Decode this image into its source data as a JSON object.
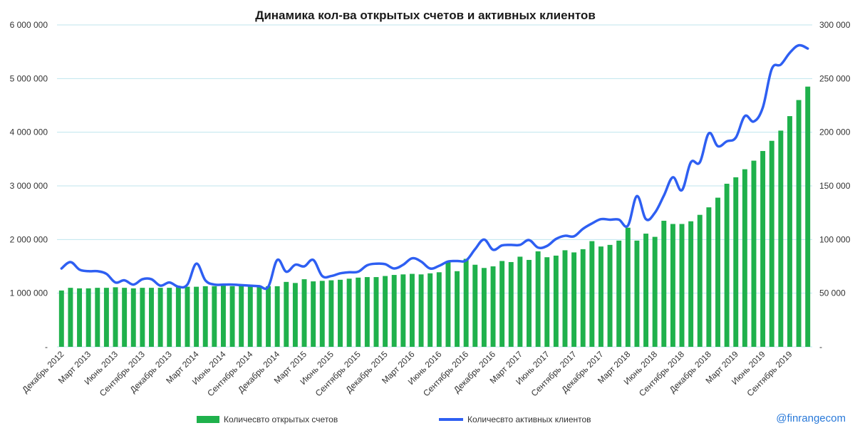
{
  "title": "Динамика кол-ва открытых счетов и активных клиентов",
  "watermark": "@finrangecom",
  "colors": {
    "bars": "#1fb14c",
    "line": "#2e5ff2",
    "grid": "#bfe6ee",
    "text": "#333333"
  },
  "chart_data": {
    "type": "bar",
    "title": "Динамика кол-ва открытых счетов и активных клиентов",
    "legend_position": "bottom",
    "grid": true,
    "y_left": {
      "min": 0,
      "max": 6000000,
      "ticks": [
        0,
        1000000,
        2000000,
        3000000,
        4000000,
        5000000,
        6000000
      ],
      "tick_labels": [
        "-",
        "1 000 000",
        "2 000 000",
        "3 000 000",
        "4 000 000",
        "5 000 000",
        "6 000 000"
      ]
    },
    "y_right": {
      "min": 0,
      "max": 300000,
      "ticks": [
        0,
        50000,
        100000,
        150000,
        200000,
        250000,
        300000
      ],
      "tick_labels": [
        "-",
        "50 000",
        "100 000",
        "150 000",
        "200 000",
        "250 000",
        "300 000"
      ]
    },
    "x_labels": [
      {
        "i": 0,
        "text": "Декабрь 2012"
      },
      {
        "i": 3,
        "text": "Март 2013"
      },
      {
        "i": 6,
        "text": "Июнь 2013"
      },
      {
        "i": 9,
        "text": "Сентябрь 2013"
      },
      {
        "i": 12,
        "text": "Декабрь 2013"
      },
      {
        "i": 15,
        "text": "Март 2014"
      },
      {
        "i": 18,
        "text": "Июнь 2014"
      },
      {
        "i": 21,
        "text": "Сентябрь 2014"
      },
      {
        "i": 24,
        "text": "Декабрь 2014"
      },
      {
        "i": 27,
        "text": "Март 2015"
      },
      {
        "i": 30,
        "text": "Июнь 2015"
      },
      {
        "i": 33,
        "text": "Сентябрь 2015"
      },
      {
        "i": 36,
        "text": "Декабрь 2015"
      },
      {
        "i": 39,
        "text": "Март 2016"
      },
      {
        "i": 42,
        "text": "Июнь 2016"
      },
      {
        "i": 45,
        "text": "Сентябрь 2016"
      },
      {
        "i": 48,
        "text": "Декабрь 2016"
      },
      {
        "i": 51,
        "text": "Март 2017"
      },
      {
        "i": 54,
        "text": "Июнь 2017"
      },
      {
        "i": 57,
        "text": "Сентябрь 2017"
      },
      {
        "i": 60,
        "text": "Декабрь 2017"
      },
      {
        "i": 63,
        "text": "Март 2018"
      },
      {
        "i": 66,
        "text": "Июнь 2018"
      },
      {
        "i": 69,
        "text": "Сентябрь 2018"
      },
      {
        "i": 72,
        "text": "Декабрь 2018"
      },
      {
        "i": 75,
        "text": "Март 2019"
      },
      {
        "i": 78,
        "text": "Июнь 2019"
      },
      {
        "i": 81,
        "text": "Сентябрь 2019"
      }
    ],
    "series": [
      {
        "name": "Количесвто открытых счетов",
        "type": "bar",
        "axis": "left",
        "values": [
          1050000,
          1100000,
          1090000,
          1090000,
          1100000,
          1100000,
          1110000,
          1100000,
          1090000,
          1100000,
          1100000,
          1100000,
          1100000,
          1110000,
          1120000,
          1120000,
          1130000,
          1130000,
          1140000,
          1130000,
          1140000,
          1150000,
          1140000,
          1130000,
          1130000,
          1210000,
          1190000,
          1260000,
          1220000,
          1230000,
          1240000,
          1250000,
          1270000,
          1290000,
          1300000,
          1300000,
          1320000,
          1340000,
          1350000,
          1360000,
          1350000,
          1370000,
          1390000,
          1600000,
          1410000,
          1640000,
          1530000,
          1470000,
          1500000,
          1600000,
          1580000,
          1680000,
          1620000,
          1780000,
          1670000,
          1700000,
          1800000,
          1760000,
          1820000,
          1970000,
          1870000,
          1900000,
          1980000,
          2220000,
          1980000,
          2110000,
          2050000,
          2350000,
          2290000,
          2290000,
          2340000,
          2460000,
          2600000,
          2780000,
          3040000,
          3160000,
          3310000,
          3470000,
          3650000,
          3840000,
          4030000,
          4300000,
          4600000,
          4850000
        ]
      },
      {
        "name": "Количесвто активных клиентов",
        "type": "line",
        "axis": "right",
        "values": [
          73000,
          79000,
          72000,
          70500,
          70500,
          68000,
          60000,
          62000,
          58000,
          63000,
          63000,
          57000,
          60000,
          56000,
          58000,
          77500,
          62000,
          58000,
          58000,
          58000,
          57500,
          57000,
          56500,
          56000,
          81000,
          70000,
          76500,
          75000,
          81000,
          66000,
          66000,
          68500,
          69500,
          70000,
          76000,
          77500,
          77000,
          73000,
          76500,
          82500,
          79500,
          73000,
          75500,
          79500,
          80000,
          80500,
          91000,
          100000,
          90500,
          94500,
          95000,
          95000,
          99500,
          92500,
          94000,
          100500,
          103500,
          103000,
          110000,
          115000,
          119000,
          118500,
          118500,
          113000,
          140500,
          119000,
          125000,
          141000,
          158000,
          146000,
          172000,
          172000,
          199000,
          187000,
          191500,
          195000,
          215000,
          210000,
          223000,
          259000,
          263000,
          274000,
          281000,
          278000
        ]
      }
    ]
  }
}
